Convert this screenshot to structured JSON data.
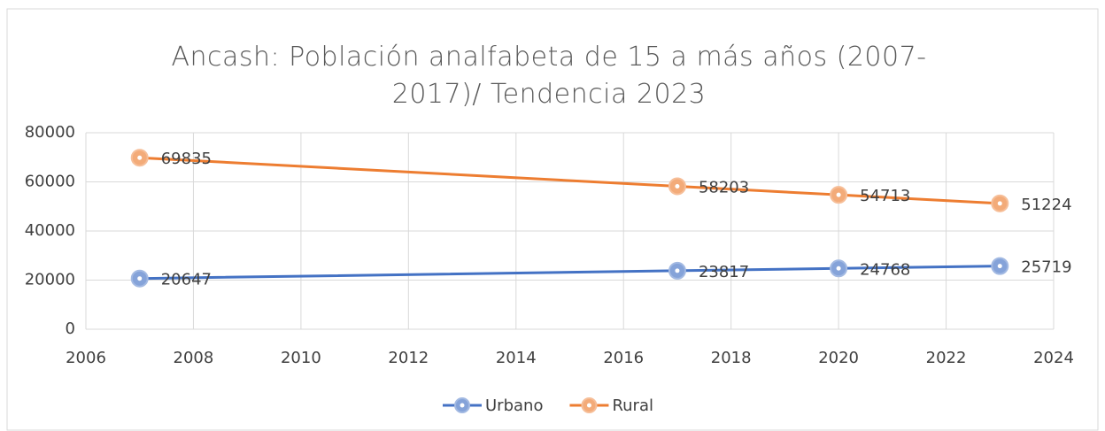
{
  "chart_data": {
    "type": "line",
    "title": "Ancash: Población analfabeta de 15 a más años (2007-2017)/ Tendencia 2023",
    "x": [
      2007,
      2017,
      2020,
      2023
    ],
    "series": [
      {
        "name": "Urbano",
        "color": "#4472c4",
        "values": [
          20647,
          23817,
          24768,
          25719
        ]
      },
      {
        "name": "Rural",
        "color": "#ed7d31",
        "values": [
          69835,
          58203,
          54713,
          51224
        ]
      }
    ],
    "xlim": [
      2006,
      2024
    ],
    "xticks": [
      2006,
      2008,
      2010,
      2012,
      2014,
      2016,
      2018,
      2020,
      2022,
      2024
    ],
    "ylim": [
      0,
      80000
    ],
    "yticks": [
      0,
      20000,
      40000,
      60000,
      80000
    ],
    "grid": true,
    "legend": "bottom"
  }
}
